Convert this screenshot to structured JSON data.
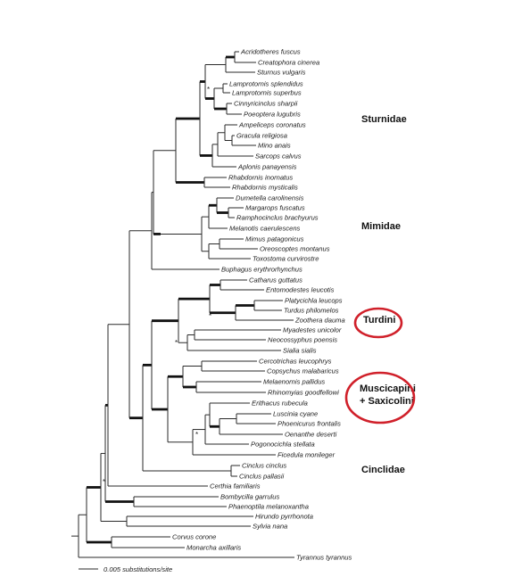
{
  "taxa": [
    "Acridotheres fuscus",
    "Creatophora cinerea",
    "Sturnus vulgaris",
    "Lamprotornis splendidus",
    "Lamprotornis superbus",
    "Cinnyricinclus sharpii",
    "Poeoptera lugubris",
    "Ampeliceps coronatus",
    "Gracula religiosa",
    "Mino anais",
    "Sarcops calvus",
    "Aplonis panayensis",
    "Rhabdornis inornatus",
    "Rhabdornis mysticalis",
    "Dumetella carolinensis",
    "Margarops fuscatus",
    "Ramphocinclus brachyurus",
    "Melanotis caerulescens",
    "Mimus patagonicus",
    "Oreoscoptes montanus",
    "Toxostoma curvirostre",
    "Buphagus erythrorhynchus",
    "Catharus guttatus",
    "Entomodestes leucotis",
    "Platycichla leucops",
    "Turdus philomelos",
    "Zoothera dauma",
    "Myadestes unicolor",
    "Neocossyphus poensis",
    "Sialia sialis",
    "Cercotrichas leucophrys",
    "Copsychus malabaricus",
    "Melaenornis pallidus",
    "Rhinomyias goodfellowi",
    "Erithacus rubecula",
    "Luscinia cyane",
    "Phoenicurus frontalis",
    "Oenanthe deserti",
    "Pogonocichla stellata",
    "Ficedula monileger",
    "Cinclus cinclus",
    "Cinclus pallasii",
    "Certhia familiaris",
    "Bombycilla garrulus",
    "Phaenoptila melanoxantha",
    "Hirundo pyrrhonota",
    "Sylvia nana",
    "Corvus corone",
    "Monarcha axillaris",
    "Tyrannus tyrannus"
  ],
  "clades": {
    "sturnidae": "Sturnidae",
    "mimidae": "Mimidae",
    "turdini": "Turdini",
    "muscicapini_line1": "Muscicapini",
    "muscicapini_line2": "+ Saxicolini",
    "cinclidae": "Cinclidae"
  },
  "support_mark": "*",
  "scale_bar": {
    "label": "0.005 substitutions/site"
  },
  "colors": {
    "branch": "#2a2a2a",
    "highlight": "#d0202a",
    "text": "#1a1a1a"
  }
}
